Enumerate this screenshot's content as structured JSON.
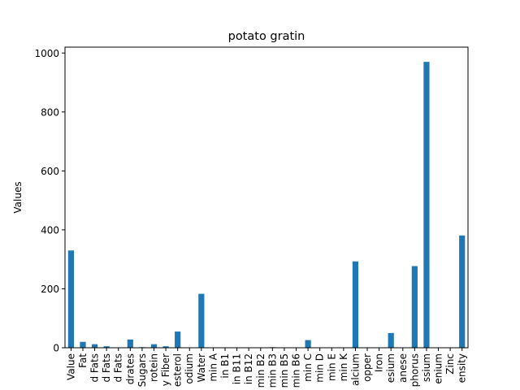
{
  "chart_data": {
    "type": "bar",
    "title": "potato gratin",
    "xlabel": "",
    "ylabel": "Values",
    "ylim": [
      0,
      1020
    ],
    "yticks": [
      0,
      200,
      400,
      600,
      800,
      1000
    ],
    "grid": false,
    "legend": "none",
    "bar_color": "#1f77b4",
    "categories": [
      "Value",
      "Fat",
      "d Fats",
      "d Fats",
      "d Fats",
      "drates",
      "Sugars",
      "rotein",
      "y Fiber",
      "esterol",
      "odium",
      "Water",
      "min A",
      "in B1",
      "in B11",
      "in B12",
      "min B2",
      "min B3",
      "min B5",
      "min B6",
      "min C",
      "min D",
      "min E",
      "min K",
      "alcium",
      "opper",
      "Iron",
      "esium",
      "anese",
      "phorus",
      "ssium",
      "enium",
      "Zinc",
      "ensity"
    ],
    "values": [
      330,
      20,
      12,
      5,
      1,
      28,
      2,
      12,
      5,
      55,
      0,
      183,
      0,
      0,
      0,
      0,
      0,
      2,
      0,
      0,
      26,
      0,
      0,
      0,
      293,
      0,
      1,
      50,
      0,
      277,
      970,
      0,
      1,
      381
    ]
  }
}
